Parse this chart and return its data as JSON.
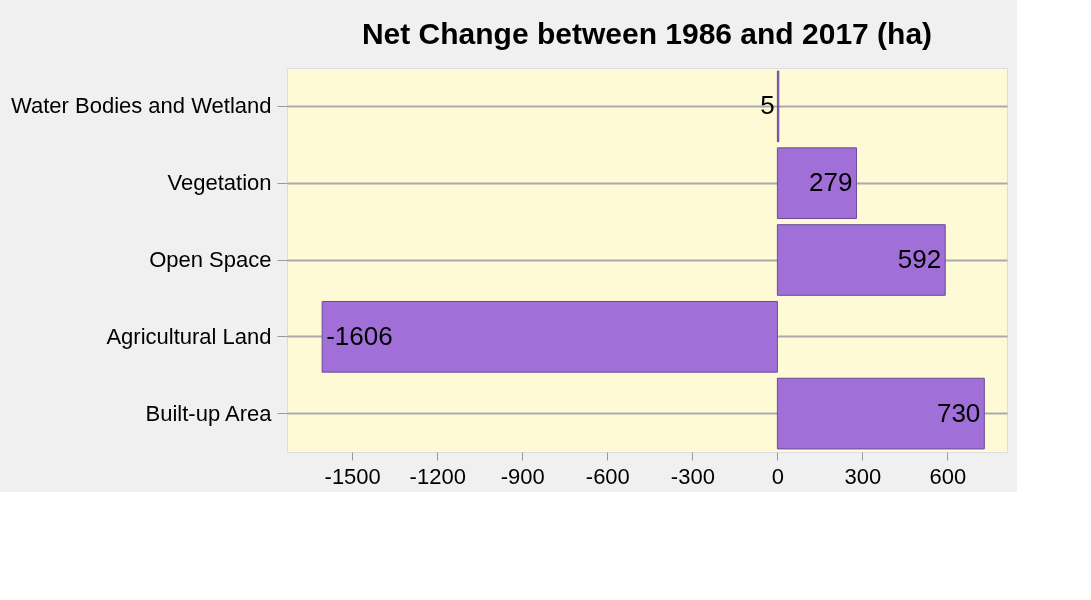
{
  "chart_data": {
    "type": "bar",
    "orientation": "horizontal",
    "title": "Net Change between 1986 and 2017 (ha)",
    "categories": [
      "Water Bodies and Wetland",
      "Vegetation",
      "Open Space",
      "Agricultural Land",
      "Built-up Area"
    ],
    "values": [
      5,
      279,
      592,
      -1606,
      730
    ],
    "color": "#a070d8",
    "xlim": [
      -1730,
      810
    ],
    "xticks": [
      -1500,
      -1200,
      -900,
      -600,
      -300,
      0,
      300,
      600
    ],
    "data_labels": true,
    "grid": "y"
  }
}
